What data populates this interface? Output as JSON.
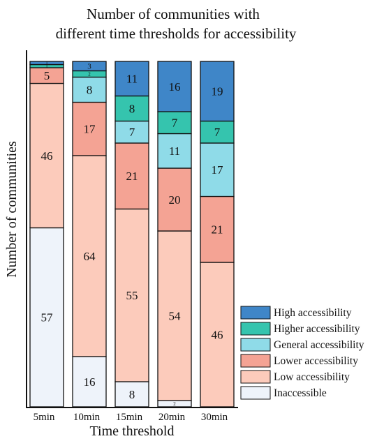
{
  "chart_data": {
    "type": "bar",
    "stacked": true,
    "title": [
      "Number of communities with",
      "different time thresholds for accessibility"
    ],
    "xlabel": "Time threshold",
    "ylabel": "Number of communities",
    "categories": [
      "5min",
      "10min",
      "15min",
      "20min",
      "30min"
    ],
    "series": [
      {
        "name": "Inaccessible",
        "color": "#eef3fa",
        "values": [
          57,
          16,
          8,
          2,
          0
        ]
      },
      {
        "name": "Low accessibility",
        "color": "#fccbbb",
        "values": [
          46,
          64,
          55,
          54,
          46
        ]
      },
      {
        "name": "Lower accessibility",
        "color": "#f4a394",
        "values": [
          5,
          17,
          21,
          20,
          21
        ]
      },
      {
        "name": "General accessibility",
        "color": "#8fdbe8",
        "values": [
          0,
          8,
          7,
          11,
          17
        ]
      },
      {
        "name": "Higher accessibility",
        "color": "#35c4ae",
        "values": [
          1,
          2,
          8,
          7,
          7
        ]
      },
      {
        "name": "High accessibility",
        "color": "#3f86c8",
        "values": [
          1,
          3,
          11,
          16,
          19
        ]
      }
    ],
    "ylim": [
      0,
      110
    ],
    "grid": false,
    "legend_position": "bottom-right"
  }
}
